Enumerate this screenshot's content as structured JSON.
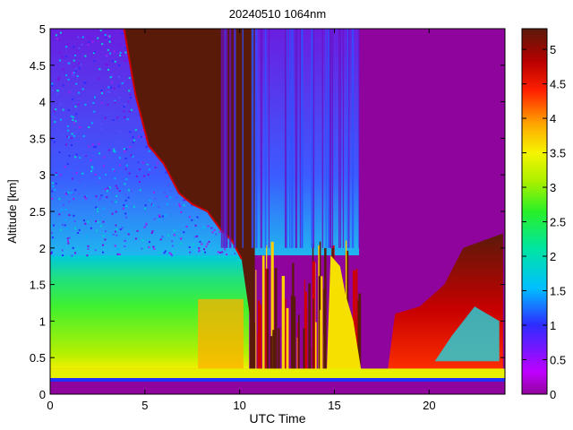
{
  "chart_data": {
    "type": "heatmap",
    "title": "20240510 1064nm",
    "xlabel": "UTC Time",
    "ylabel": "Altitude [km]",
    "xlim": [
      0,
      24
    ],
    "ylim": [
      0,
      5
    ],
    "clim": [
      0,
      5.3
    ],
    "x_ticks": [
      0,
      5,
      10,
      15,
      20
    ],
    "x_tick_labels": [
      "0",
      "5",
      "10",
      "15",
      "20"
    ],
    "y_ticks": [
      0,
      0.5,
      1,
      1.5,
      2,
      2.5,
      3,
      3.5,
      4,
      4.5,
      5
    ],
    "y_tick_labels": [
      "0",
      "0.5",
      "1",
      "1.5",
      "2",
      "2.5",
      "3",
      "3.5",
      "4",
      "4.5",
      "5"
    ],
    "colorbar_ticks": [
      0,
      0.5,
      1,
      1.5,
      2,
      2.5,
      3,
      3.5,
      4,
      4.5,
      5
    ],
    "colorbar_tick_labels": [
      "0",
      "0.5",
      "1",
      "1.5",
      "2",
      "2.5",
      "3",
      "3.5",
      "4",
      "4.5",
      "5"
    ],
    "colormap": "jet-like rainbow (purple-blue-cyan-green-yellow-orange-red-dark brown)",
    "colormap_stops": [
      "#8f049c",
      "#c000ff",
      "#2d2dff",
      "#00bfff",
      "#00e5a0",
      "#28f028",
      "#a8f000",
      "#f5f500",
      "#ffa500",
      "#ff2000",
      "#b80000",
      "#5a1a0a"
    ],
    "grid": false,
    "features": {
      "boundary_layer_top_km": 1.9,
      "surface_layer_km": [
        0.15,
        0.35
      ],
      "dense_layer_upper_edge": {
        "t_hours": [
          3.9,
          4.5,
          5.2,
          6.0,
          6.8,
          7.5,
          8.3,
          9.0,
          9.6,
          10.1
        ],
        "alt_km": [
          5.0,
          4.1,
          3.4,
          3.15,
          2.75,
          2.6,
          2.5,
          2.25,
          2.1,
          1.85
        ]
      },
      "clear_region_hours": [
        16.3,
        24
      ],
      "late_cloud_hours": [
        21.8,
        24
      ],
      "late_cloud_alt_km": [
        0.3,
        2.2
      ]
    }
  }
}
